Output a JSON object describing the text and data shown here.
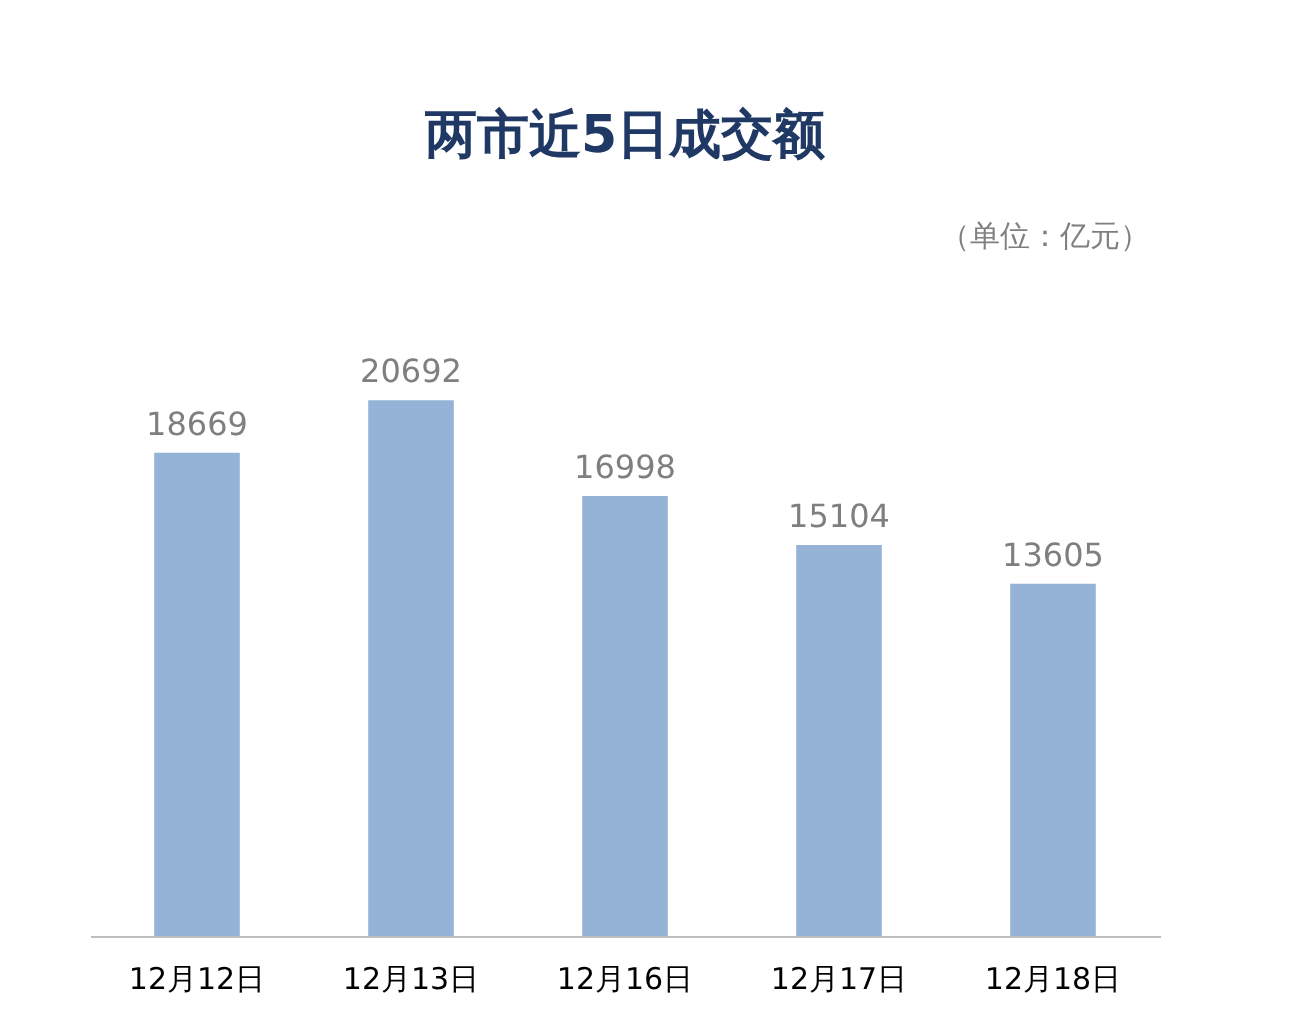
{
  "chart_data": {
    "type": "bar",
    "title": "两市近5日成交额",
    "annotations": [
      "（单位：亿元）"
    ],
    "categories": [
      "12月12日",
      "12月13日",
      "12月16日",
      "12月17日",
      "12月18日"
    ],
    "values": [
      18669,
      20692,
      16998,
      15104,
      13605
    ],
    "color": "#95b3d7",
    "data_labels": true,
    "tick_labels": "x"
  }
}
